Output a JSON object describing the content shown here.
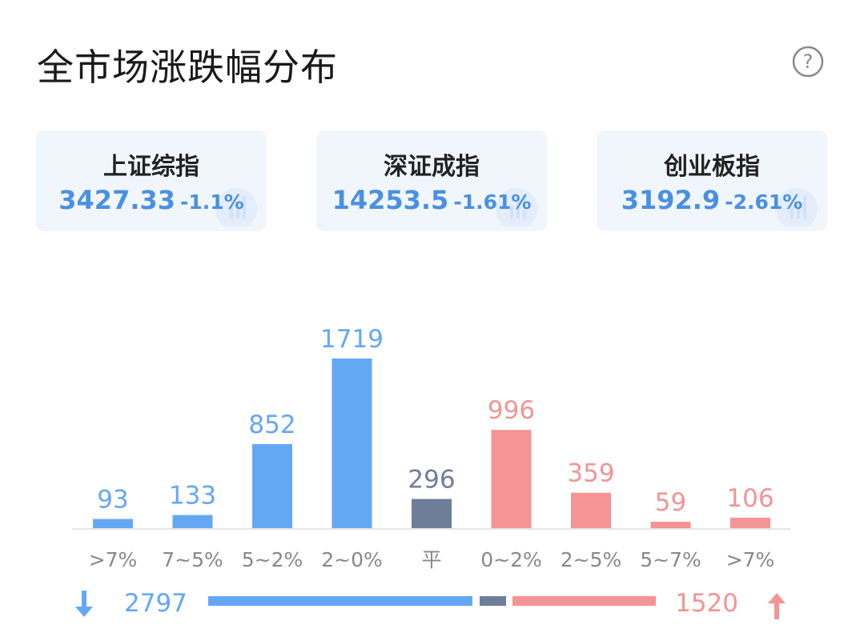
{
  "header": {
    "title": "全市场涨跌幅分布"
  },
  "indices": [
    {
      "name": "上证综指",
      "value": "3427.33",
      "change": "-1.1%"
    },
    {
      "name": "深证成指",
      "value": "14253.5",
      "change": "-1.61%"
    },
    {
      "name": "创业板指",
      "value": "3192.9",
      "change": "-2.61%"
    }
  ],
  "colors": {
    "down": "#64a8f4",
    "flat": "#6e7e9a",
    "up": "#f49494",
    "index_text": "#4a90e2"
  },
  "chart_data": {
    "type": "bar",
    "categories": [
      ">7%",
      "7~5%",
      "5~2%",
      "2~0%",
      "平",
      "0~2%",
      "2~5%",
      "5~7%",
      ">7%"
    ],
    "values": [
      93,
      133,
      852,
      1719,
      296,
      996,
      359,
      59,
      106
    ],
    "groups": [
      "down",
      "down",
      "down",
      "down",
      "flat",
      "up",
      "up",
      "up",
      "up"
    ],
    "title": "",
    "xlabel": "",
    "ylabel": "",
    "grid": false,
    "legend": "none"
  },
  "summary": {
    "down_total": "2797",
    "up_total": "1520",
    "down_icon": "arrow-down-icon",
    "up_icon": "arrow-up-icon"
  },
  "help_icon": "question-circle-icon"
}
